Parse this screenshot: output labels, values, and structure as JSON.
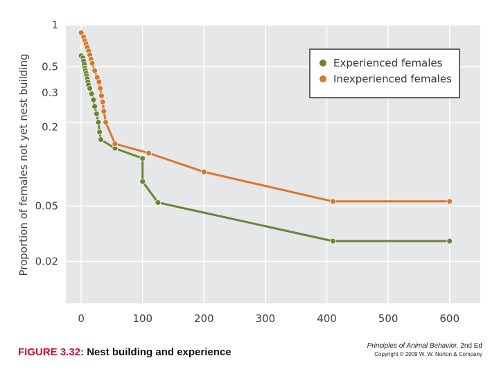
{
  "figure_number": "FIGURE 3.32:",
  "figure_title": "Nest building and experience",
  "credit": {
    "book_title": "Principles of Animal Behavior,",
    "edition": "2nd Ed",
    "copyright": "Copyright © 2009 W. W. Norton & Company"
  },
  "chart_data": {
    "type": "line",
    "title": "",
    "xlabel": "",
    "ylabel": "Proportion of females not yet nest building",
    "x_ticks": [
      "0",
      "100",
      "200",
      "300",
      "400",
      "500",
      "600"
    ],
    "y_ticks": [
      "1",
      "0.5",
      "0.3",
      "0.2",
      "0.05",
      "0.02"
    ],
    "y_scale": "log",
    "xlim": [
      -25,
      650
    ],
    "ylim": [
      0.01,
      1
    ],
    "grid": true,
    "legend_position": "top-right",
    "series": [
      {
        "name": "Experienced females",
        "color": "#6b8434",
        "x": [
          0,
          3,
          4,
          5,
          6,
          7,
          8,
          9,
          10,
          11,
          12,
          14,
          17,
          20,
          22,
          25,
          28,
          30,
          32,
          55,
          100,
          100,
          125,
          410,
          600
        ],
        "y": [
          0.6,
          0.58,
          0.55,
          0.52,
          0.49,
          0.47,
          0.45,
          0.43,
          0.41,
          0.39,
          0.37,
          0.35,
          0.32,
          0.29,
          0.26,
          0.23,
          0.2,
          0.17,
          0.15,
          0.13,
          0.11,
          0.075,
          0.053,
          0.028,
          0.028
        ]
      },
      {
        "name": "Inexperienced females",
        "color": "#d9772b",
        "x": [
          0,
          4,
          6,
          8,
          10,
          12,
          14,
          16,
          18,
          22,
          26,
          29,
          31,
          33,
          35,
          37,
          40,
          55,
          110,
          200,
          410,
          600
        ],
        "y": [
          0.88,
          0.82,
          0.77,
          0.73,
          0.69,
          0.65,
          0.61,
          0.57,
          0.53,
          0.47,
          0.42,
          0.39,
          0.35,
          0.31,
          0.28,
          0.24,
          0.2,
          0.14,
          0.12,
          0.088,
          0.054,
          0.054
        ]
      }
    ]
  }
}
